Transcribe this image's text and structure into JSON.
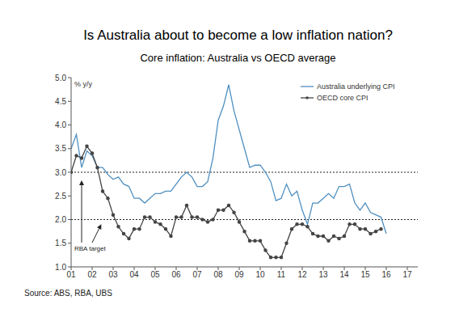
{
  "chart_data": {
    "type": "line",
    "title": "Is Australia about to become a low inflation nation?",
    "subtitle": "Core inflation: Australia vs OECD average",
    "y_label": "% y/y",
    "source": "Source: ABS, RBA, UBS",
    "annotations": [
      "RBA target"
    ],
    "target_band": [
      2,
      3
    ],
    "x": [
      2001,
      2001.25,
      2001.5,
      2001.75,
      2002,
      2002.25,
      2002.5,
      2002.75,
      2003,
      2003.25,
      2003.5,
      2003.75,
      2004,
      2004.25,
      2004.5,
      2004.75,
      2005,
      2005.25,
      2005.5,
      2005.75,
      2006,
      2006.25,
      2006.5,
      2006.75,
      2007,
      2007.25,
      2007.5,
      2007.75,
      2008,
      2008.25,
      2008.5,
      2008.75,
      2009,
      2009.25,
      2009.5,
      2009.75,
      2010,
      2010.25,
      2010.5,
      2010.75,
      2011,
      2011.25,
      2011.5,
      2011.75,
      2012,
      2012.25,
      2012.5,
      2012.75,
      2013,
      2013.25,
      2013.5,
      2013.75,
      2014,
      2014.25,
      2014.5,
      2014.75,
      2015,
      2015.25,
      2015.5,
      2015.75,
      2016
    ],
    "series": [
      {
        "name": "Australia underlying CPI",
        "color": "#4f8fc0",
        "marker": "none",
        "values": [
          3.5,
          3.8,
          3.1,
          3.45,
          3.35,
          3.1,
          3.1,
          2.95,
          2.85,
          2.9,
          2.75,
          2.7,
          2.45,
          2.45,
          2.35,
          2.45,
          2.55,
          2.55,
          2.6,
          2.6,
          2.75,
          2.9,
          3.0,
          2.9,
          2.7,
          2.7,
          2.8,
          3.3,
          4.1,
          4.4,
          4.85,
          4.3,
          3.9,
          3.5,
          3.1,
          3.15,
          3.15,
          3.0,
          2.8,
          2.4,
          2.45,
          2.75,
          2.5,
          2.6,
          2.2,
          1.9,
          2.35,
          2.35,
          2.45,
          2.55,
          2.45,
          2.7,
          2.7,
          2.75,
          2.35,
          2.2,
          2.35,
          2.15,
          2.1,
          2.05,
          1.7
        ]
      },
      {
        "name": "OECD core CPI",
        "color": "#444444",
        "marker": "circle",
        "values": [
          3.0,
          3.35,
          3.3,
          3.55,
          3.4,
          3.1,
          2.6,
          2.45,
          2.1,
          1.85,
          1.7,
          1.6,
          1.8,
          1.8,
          2.05,
          2.05,
          1.95,
          1.9,
          1.8,
          1.65,
          2.05,
          2.05,
          2.3,
          2.05,
          2.05,
          2.0,
          1.95,
          2.0,
          2.2,
          2.2,
          2.3,
          2.15,
          1.95,
          1.75,
          1.55,
          1.55,
          1.55,
          1.35,
          1.2,
          1.2,
          1.2,
          1.5,
          1.8,
          1.9,
          1.9,
          1.85,
          1.7,
          1.65,
          1.65,
          1.55,
          1.65,
          1.6,
          1.65,
          1.9,
          1.9,
          1.8,
          1.8,
          1.7,
          1.75,
          1.8,
          null
        ]
      }
    ],
    "xlim": [
      2001,
      2017.5
    ],
    "xticks": [
      {
        "value": 2001,
        "label": "01"
      },
      {
        "value": 2002,
        "label": "02"
      },
      {
        "value": 2003,
        "label": "03"
      },
      {
        "value": 2004,
        "label": "04"
      },
      {
        "value": 2005,
        "label": "05"
      },
      {
        "value": 2006,
        "label": "06"
      },
      {
        "value": 2007,
        "label": "07"
      },
      {
        "value": 2008,
        "label": "08"
      },
      {
        "value": 2009,
        "label": "09"
      },
      {
        "value": 2010,
        "label": "10"
      },
      {
        "value": 2011,
        "label": "11"
      },
      {
        "value": 2012,
        "label": "12"
      },
      {
        "value": 2013,
        "label": "13"
      },
      {
        "value": 2014,
        "label": "14"
      },
      {
        "value": 2015,
        "label": "15"
      },
      {
        "value": 2016,
        "label": "16"
      },
      {
        "value": 2017,
        "label": "17"
      }
    ],
    "ylim": [
      1,
      5
    ],
    "yticks": [
      {
        "value": 1,
        "label": "1.0"
      },
      {
        "value": 1.5,
        "label": "1.5"
      },
      {
        "value": 2,
        "label": "2.0"
      },
      {
        "value": 2.5,
        "label": "2.5"
      },
      {
        "value": 3,
        "label": "3.0"
      },
      {
        "value": 3.5,
        "label": "3.5"
      },
      {
        "value": 4,
        "label": "4.0"
      },
      {
        "value": 4.5,
        "label": "4.5"
      },
      {
        "value": 5,
        "label": "5.0"
      }
    ],
    "grid": false,
    "legend": "upper right"
  }
}
